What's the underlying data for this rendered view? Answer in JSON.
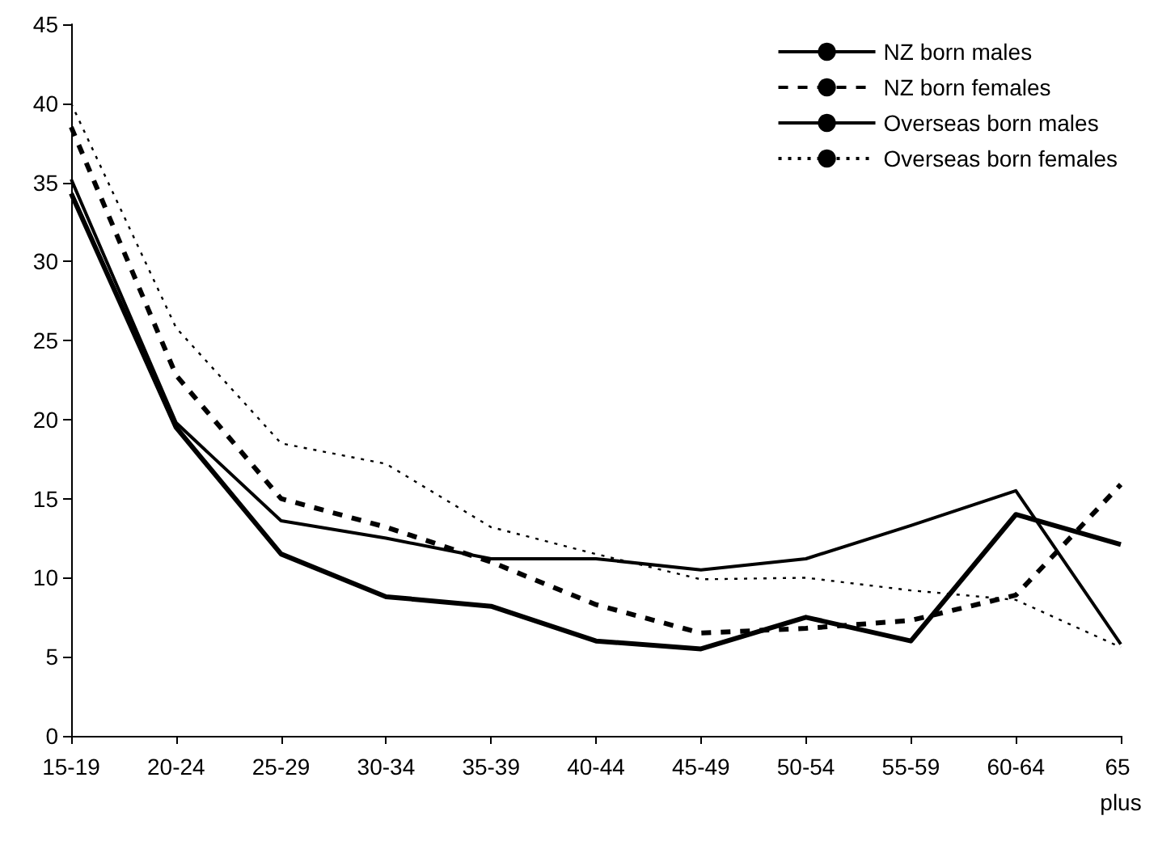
{
  "chart_data": {
    "type": "line",
    "categories": [
      "15-19",
      "20-24",
      "25-29",
      "30-34",
      "35-39",
      "40-44",
      "45-49",
      "50-54",
      "55-59",
      "60-64",
      "65 plus"
    ],
    "series": [
      {
        "name": "NZ born males",
        "color": "#000000",
        "line_style": "solid",
        "values": [
          34.3,
          19.5,
          11.5,
          8.8,
          8.2,
          6.0,
          5.5,
          7.5,
          6.0,
          14.0,
          12.1
        ]
      },
      {
        "name": "NZ born females",
        "color": "#000000",
        "line_style": "dashed",
        "values": [
          38.5,
          22.8,
          15.0,
          13.2,
          11.0,
          8.3,
          6.5,
          6.8,
          7.3,
          8.9,
          15.9
        ]
      },
      {
        "name": "Overseas born males",
        "color": "#000000",
        "line_style": "solid",
        "values": [
          35.2,
          19.8,
          13.6,
          12.5,
          11.2,
          11.2,
          10.5,
          11.2,
          13.3,
          15.5,
          5.8
        ]
      },
      {
        "name": "Overseas born females",
        "color": "#000000",
        "line_style": "dotted",
        "values": [
          40.0,
          25.8,
          18.5,
          17.2,
          13.2,
          11.5,
          9.9,
          10.0,
          9.2,
          8.6,
          5.6
        ]
      }
    ],
    "ylim": [
      0,
      45
    ],
    "yticks": [
      0,
      5,
      10,
      15,
      20,
      25,
      30,
      35,
      40,
      45
    ],
    "grid": false,
    "legend": "top right",
    "marker": "none"
  }
}
